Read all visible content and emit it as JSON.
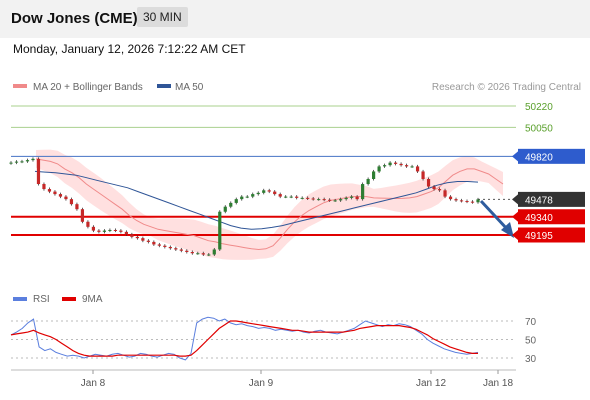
{
  "header": {
    "title": "Dow Jones (CME)",
    "timeframe": "30 MIN",
    "datetime": "Monday, January 12, 2026 7:12:22 AM CET"
  },
  "legend": {
    "bollinger": "MA 20 + Bollinger Bands",
    "ma50": "MA 50",
    "copyright": "Research © 2026 Trading Central",
    "rsi": "RSI",
    "ma9": "9MA"
  },
  "colors": {
    "bollinger_fill": "#ffd6d6",
    "ma20": "#f08a8a",
    "ma50": "#2f5597",
    "resistance_green": "#a9d08e",
    "support_red": "#e00000",
    "pivot_blue": "#4472c4",
    "rsi": "#5b7fde",
    "rsi_ma": "#e00000",
    "arrow": "#2e5c9e",
    "candle_up": "#2e7d32",
    "candle_down": "#c62828"
  },
  "chart_data": [
    {
      "type": "line",
      "title": "",
      "x_axis_labels": [
        "Jan 8",
        "Jan 9",
        "Jan 12",
        "Jan 18"
      ],
      "ylim": [
        49100,
        50260
      ],
      "levels": [
        {
          "label": "50220",
          "value": 50220,
          "kind": "resistance"
        },
        {
          "label": "50050",
          "value": 50050,
          "kind": "resistance"
        },
        {
          "label": "49820",
          "value": 49820,
          "kind": "pivot"
        },
        {
          "label": "49478",
          "value": 49478,
          "kind": "last"
        },
        {
          "label": "49340",
          "value": 49340,
          "kind": "support"
        },
        {
          "label": "49195",
          "value": 49195,
          "kind": "support"
        }
      ],
      "price_close": [
        49770,
        49778,
        49780,
        49790,
        49800,
        49600,
        49560,
        49540,
        49520,
        49500,
        49480,
        49440,
        49400,
        49300,
        49260,
        49230,
        49220,
        49230,
        49235,
        49230,
        49220,
        49200,
        49180,
        49170,
        49150,
        49140,
        49120,
        49110,
        49100,
        49090,
        49080,
        49070,
        49060,
        49050,
        49050,
        49040,
        49040,
        49080,
        49380,
        49420,
        49450,
        49480,
        49500,
        49500,
        49520,
        49530,
        49550,
        49540,
        49520,
        49500,
        49500,
        49500,
        49490,
        49490,
        49485,
        49480,
        49480,
        49475,
        49470,
        49470,
        49480,
        49490,
        49500,
        49480,
        49600,
        49640,
        49700,
        49740,
        49750,
        49770,
        49760,
        49750,
        49740,
        49740,
        49700,
        49640,
        49580,
        49560,
        49550,
        49500,
        49480,
        49470,
        49465,
        49460,
        49455,
        49478
      ],
      "ma20": [
        49800,
        49790,
        49780,
        49760,
        49720,
        49690,
        49650,
        49600,
        49560,
        49520,
        49480,
        49440,
        49400,
        49350,
        49310,
        49280,
        49260,
        49240,
        49230,
        49220,
        49210,
        49200,
        49190,
        49170,
        49150,
        49140,
        49125,
        49115,
        49105,
        49095,
        49085,
        49080,
        49085,
        49110,
        49170,
        49240,
        49300,
        49350,
        49390,
        49420,
        49450,
        49470,
        49480,
        49490,
        49500,
        49500,
        49500,
        49490,
        49488,
        49487,
        49485,
        49486,
        49490,
        49500,
        49520,
        49540,
        49570,
        49620,
        49670,
        49700,
        49720,
        49720,
        49700,
        49680,
        49640,
        49600
      ],
      "ma50": [
        49700,
        49695,
        49690,
        49680,
        49670,
        49650,
        49630,
        49610,
        49590,
        49570,
        49540,
        49510,
        49480,
        49450,
        49420,
        49390,
        49360,
        49330,
        49300,
        49270,
        49250,
        49240,
        49245,
        49255,
        49270,
        49290,
        49310,
        49330,
        49350,
        49370,
        49390,
        49410,
        49430,
        49450,
        49470,
        49490,
        49510,
        49530,
        49560,
        49590,
        49610,
        49620,
        49620,
        49615
      ],
      "rsi": {
        "ticks": [
          70,
          50,
          30
        ],
        "ylim": [
          20,
          80
        ],
        "rsi": [
          55,
          58,
          62,
          68,
          72,
          42,
          38,
          40,
          36,
          34,
          32,
          33,
          32,
          30,
          32,
          34,
          33,
          32,
          34,
          35,
          33,
          31,
          32,
          35,
          34,
          32,
          31,
          33,
          35,
          34,
          30,
          28,
          35,
          68,
          72,
          74,
          73,
          70,
          72,
          68,
          66,
          67,
          65,
          64,
          62,
          63,
          62,
          60,
          61,
          60,
          59,
          60,
          58,
          57,
          59,
          60,
          58,
          57,
          56,
          58,
          60,
          62,
          66,
          70,
          68,
          66,
          64,
          66,
          65,
          67,
          66,
          64,
          60,
          56,
          50,
          46,
          43,
          40,
          38,
          36,
          35,
          34,
          35,
          36
        ],
        "ma9": [
          55,
          56,
          57,
          58,
          60,
          57,
          55,
          53,
          50,
          46,
          42,
          38,
          35,
          33,
          32,
          32,
          32,
          32,
          32,
          33,
          33,
          33,
          33,
          33,
          33,
          33,
          33,
          33,
          33,
          33,
          32,
          32,
          33,
          38,
          44,
          50,
          56,
          62,
          66,
          70,
          70,
          69,
          68,
          67,
          66,
          65,
          64,
          63,
          62,
          61,
          60,
          60,
          59,
          58,
          58,
          58,
          58,
          58,
          58,
          58,
          59,
          60,
          62,
          63,
          64,
          65,
          65,
          65,
          65,
          65,
          64,
          63,
          61,
          58,
          55,
          51,
          48,
          45,
          42,
          40,
          38,
          36,
          35,
          35
        ]
      }
    }
  ]
}
